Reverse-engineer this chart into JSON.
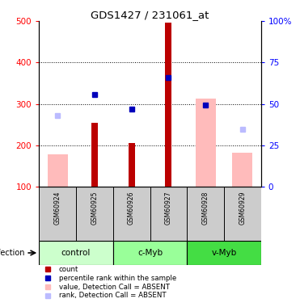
{
  "title": "GDS1427 / 231061_at",
  "samples": [
    "GSM60924",
    "GSM60925",
    "GSM60926",
    "GSM60927",
    "GSM60928",
    "GSM60929"
  ],
  "red_bars": [
    null,
    255,
    205,
    497,
    null,
    null
  ],
  "pink_bars": [
    178,
    null,
    null,
    null,
    313,
    183
  ],
  "blue_squares": [
    null,
    323,
    288,
    363,
    298,
    null
  ],
  "lavender_squares": [
    272,
    null,
    null,
    null,
    null,
    238
  ],
  "ylim_left": [
    100,
    500
  ],
  "yticks_left": [
    100,
    200,
    300,
    400,
    500
  ],
  "yticks_right": [
    0,
    25,
    50,
    75,
    100
  ],
  "ytick_labels_right": [
    "0",
    "25",
    "50",
    "75",
    "100%"
  ],
  "red_color": "#bb0000",
  "pink_color": "#ffbbbb",
  "blue_color": "#0000bb",
  "lavender_color": "#bbbbff",
  "group_names": [
    "control",
    "c-Myb",
    "v-Myb"
  ],
  "group_colors": [
    "#ccffcc",
    "#99ff99",
    "#44dd44"
  ],
  "group_starts": [
    0,
    2,
    4
  ],
  "group_ends": [
    1,
    3,
    5
  ],
  "legend_items": [
    {
      "color": "#bb0000",
      "label": "count"
    },
    {
      "color": "#0000bb",
      "label": "percentile rank within the sample"
    },
    {
      "color": "#ffbbbb",
      "label": "value, Detection Call = ABSENT"
    },
    {
      "color": "#bbbbff",
      "label": "rank, Detection Call = ABSENT"
    }
  ]
}
